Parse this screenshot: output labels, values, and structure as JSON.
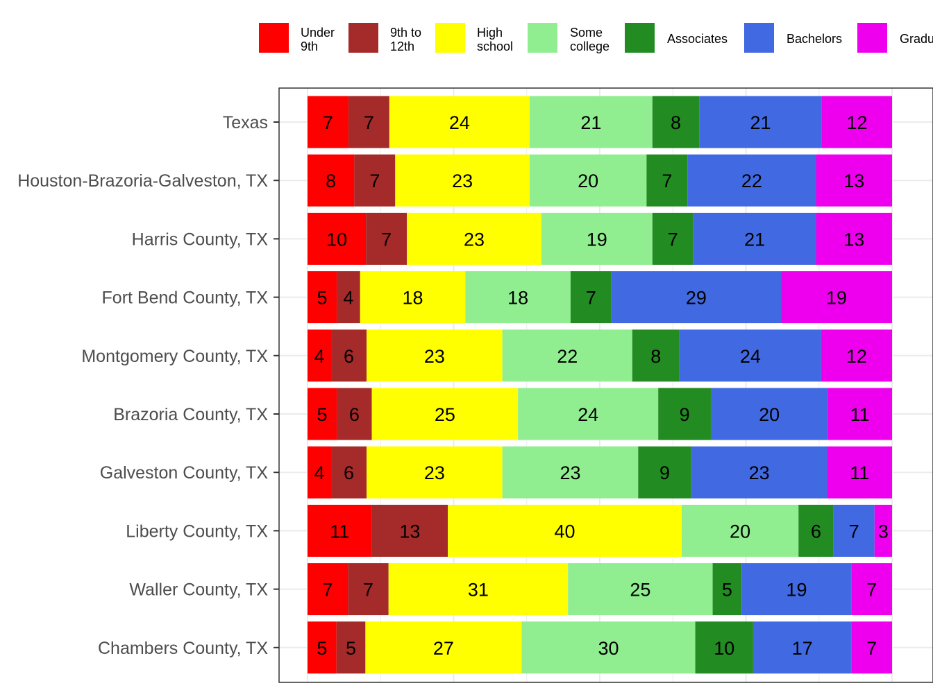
{
  "chart_data": {
    "type": "bar",
    "orientation": "horizontal",
    "stacked": true,
    "title": "",
    "xlabel": "",
    "ylabel": "",
    "xlim": [
      0,
      100
    ],
    "grid": true,
    "legend_position": "top",
    "categories": [
      "Texas",
      "Houston-Brazoria-Galveston, TX",
      "Harris County, TX",
      "Fort Bend County, TX",
      "Montgomery County, TX",
      "Brazoria County, TX",
      "Galveston County, TX",
      "Liberty County, TX",
      "Waller County, TX",
      "Chambers County, TX"
    ],
    "series": [
      {
        "name": "Under\n9th",
        "color": "#FF0000",
        "values": [
          7,
          8,
          10,
          5,
          4,
          5,
          4,
          11,
          7,
          5
        ]
      },
      {
        "name": "9th to\n12th",
        "color": "#A52A2A",
        "values": [
          7,
          7,
          7,
          4,
          6,
          6,
          6,
          13,
          7,
          5
        ]
      },
      {
        "name": "High\nschool",
        "color": "#FFFF00",
        "values": [
          24,
          23,
          23,
          18,
          23,
          25,
          23,
          40,
          31,
          27
        ]
      },
      {
        "name": "Some\ncollege",
        "color": "#90EE90",
        "values": [
          21,
          20,
          19,
          18,
          22,
          24,
          23,
          20,
          25,
          30
        ]
      },
      {
        "name": "Associates",
        "color": "#228B22",
        "values": [
          8,
          7,
          7,
          7,
          8,
          9,
          9,
          6,
          5,
          10
        ]
      },
      {
        "name": "Bachelors",
        "color": "#4169E1",
        "values": [
          21,
          22,
          21,
          29,
          24,
          20,
          23,
          7,
          19,
          17
        ]
      },
      {
        "name": "Gradu",
        "color": "#EE00EE",
        "values": [
          12,
          13,
          13,
          19,
          12,
          11,
          11,
          3,
          7,
          7
        ]
      }
    ]
  }
}
